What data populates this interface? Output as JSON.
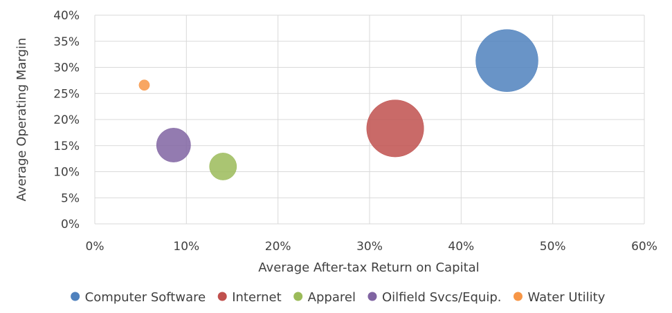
{
  "chart_data": {
    "type": "scatter",
    "title": "",
    "xlabel": "Average After-tax Return on Capital",
    "ylabel": "Average Operating Margin",
    "xlim": [
      0,
      0.6
    ],
    "ylim": [
      0,
      0.4
    ],
    "x_ticks": [
      "0%",
      "10%",
      "20%",
      "30%",
      "40%",
      "50%",
      "60%"
    ],
    "y_ticks": [
      "0%",
      "5%",
      "10%",
      "15%",
      "20%",
      "25%",
      "30%",
      "35%",
      "40%"
    ],
    "grid": true,
    "legend_position": "bottom",
    "series": [
      {
        "name": "Computer Software",
        "x": 0.45,
        "y": 0.313,
        "size": 1.0,
        "color": "#4f81bd"
      },
      {
        "name": "Internet",
        "x": 0.328,
        "y": 0.183,
        "size": 0.84,
        "color": "#c0504d"
      },
      {
        "name": "Apparel",
        "x": 0.14,
        "y": 0.11,
        "size": 0.19,
        "color": "#9bbb59"
      },
      {
        "name": "Oilfield Svcs/Equip.",
        "x": 0.086,
        "y": 0.151,
        "size": 0.3,
        "color": "#8064a2"
      },
      {
        "name": "Water Utility",
        "x": 0.054,
        "y": 0.266,
        "size": 0.029,
        "color": "#f79646"
      }
    ]
  }
}
